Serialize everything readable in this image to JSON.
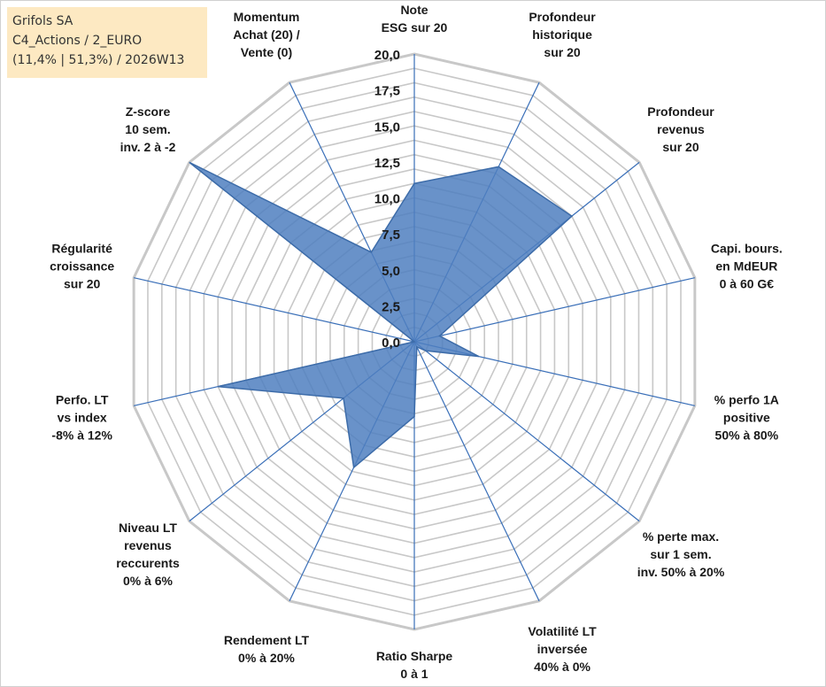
{
  "info": {
    "line1": "Grifols SA",
    "line2": "C4_Actions / 2_EURO",
    "line3": "(11,4% | 51,3%) / 2026W13"
  },
  "chart_data": {
    "type": "radar",
    "title": "",
    "axes": [
      [
        "Note",
        "ESG sur 20"
      ],
      [
        "Profondeur",
        "historique",
        "sur 20"
      ],
      [
        "Profondeur",
        "revenus",
        "sur 20"
      ],
      [
        "Capi. bours.",
        "en MdEUR",
        "0 à 60 G€"
      ],
      [
        "% perfo 1A",
        "positive",
        "50% à 80%"
      ],
      [
        "% perte max.",
        "sur 1 sem.",
        "inv. 50% à 20%"
      ],
      [
        "Volatilité LT",
        "inversée",
        "40% à 0%"
      ],
      [
        "Ratio Sharpe",
        "0 à 1"
      ],
      [
        "Rendement LT",
        "0% à 20%"
      ],
      [
        "Niveau LT",
        "revenus",
        "reccurents",
        "0% à 6%"
      ],
      [
        "Perfo. LT",
        "vs index",
        "-8% à 12%"
      ],
      [
        "Régularité",
        "croissance",
        "sur 20"
      ],
      [
        "Z-score",
        "10 sem.",
        "inv. 2 à -2"
      ],
      [
        "Momentum",
        "Achat (20) /",
        "Vente (0)"
      ]
    ],
    "rmin": 0,
    "rmax": 20,
    "ticks": [
      "0,0",
      "2,5",
      "5,0",
      "7,5",
      "10,0",
      "12,5",
      "15,0",
      "17,5",
      "20,0"
    ],
    "series": [
      {
        "name": "Grifols SA",
        "values": [
          11.0,
          13.5,
          14.0,
          1.8,
          4.6,
          1.0,
          0.4,
          5.2,
          9.7,
          6.3,
          14.0,
          0.0,
          20.0,
          6.9
        ]
      }
    ],
    "colors": {
      "fill": "#4f7fbf",
      "fill_opacity": "0.85",
      "stroke": "#3d6ca9",
      "grid": "#c8c8c8",
      "spoke": "#3a6fb8"
    }
  }
}
